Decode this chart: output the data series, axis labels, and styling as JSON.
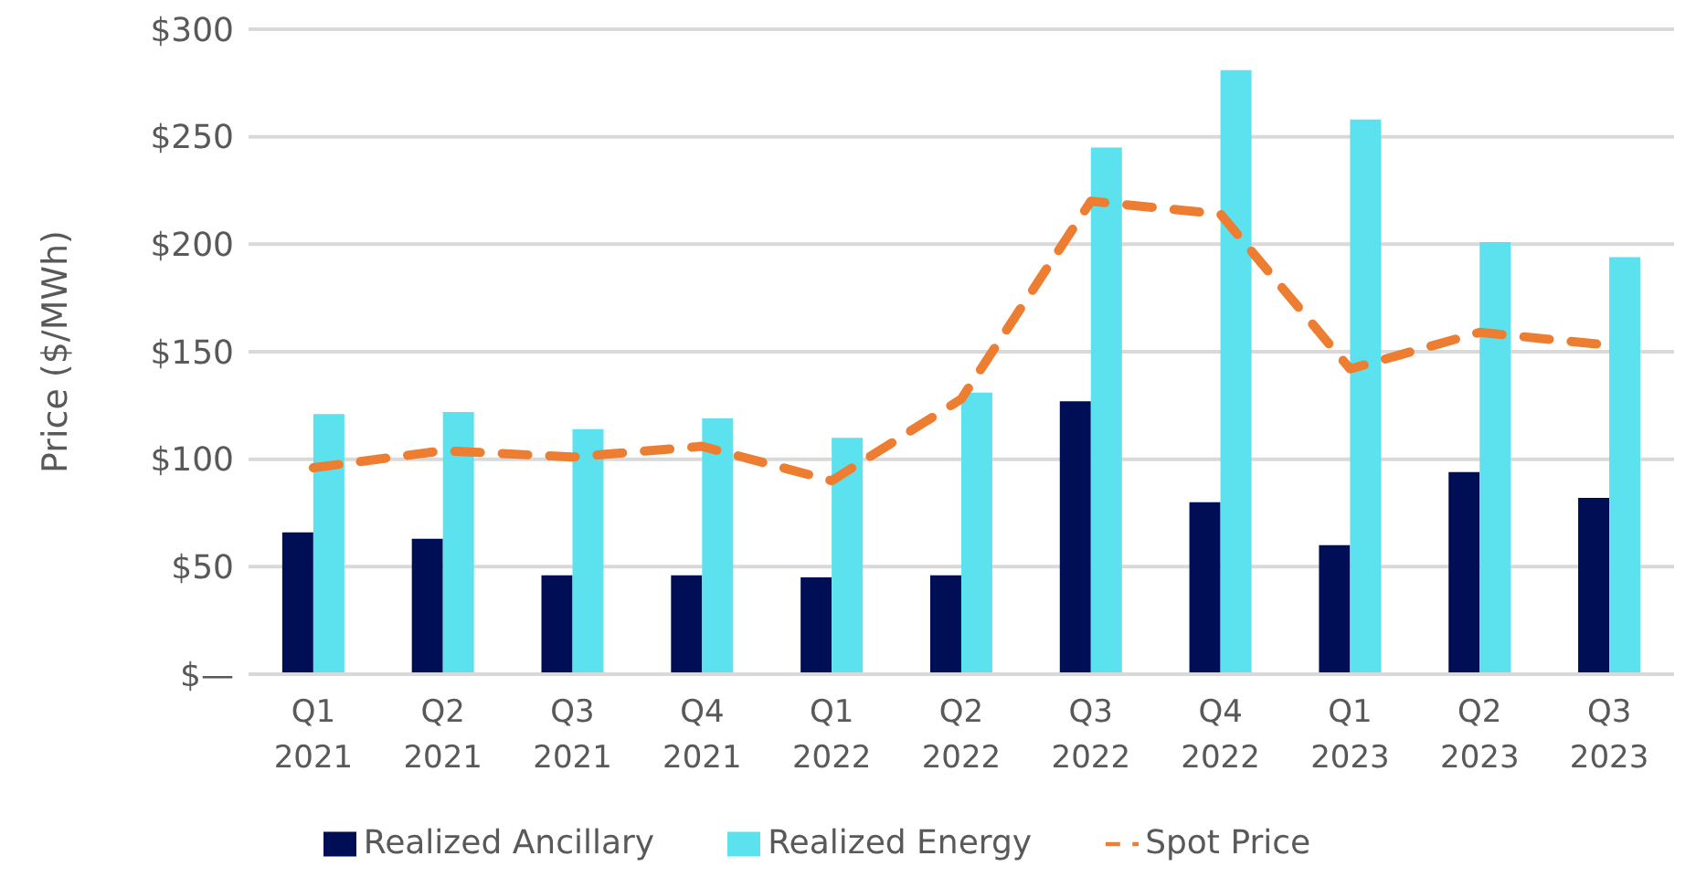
{
  "chart_data": {
    "type": "bar",
    "ylabel": "Price ($/MWh)",
    "categories": [
      "Q1\n2021",
      "Q2\n2021",
      "Q3\n2021",
      "Q4\n2021",
      "Q1\n2022",
      "Q2\n2022",
      "Q3\n2022",
      "Q4\n2022",
      "Q1\n2023",
      "Q2\n2023",
      "Q3\n2023"
    ],
    "series": [
      {
        "name": "Realized Ancillary",
        "color": "#000f55",
        "values": [
          66,
          63,
          46,
          46,
          45,
          46,
          127,
          80,
          60,
          94,
          82
        ]
      },
      {
        "name": "Realized Energy",
        "color": "#5ce1ee",
        "values": [
          121,
          122,
          114,
          119,
          110,
          131,
          245,
          281,
          258,
          201,
          194
        ]
      },
      {
        "name": "Spot Price",
        "type": "line",
        "color": "#ed7d31",
        "line_style": "dashed",
        "marker": "none",
        "values": [
          96,
          104,
          101,
          106,
          90,
          128,
          220,
          214,
          142,
          159,
          153
        ]
      }
    ],
    "ylim": [
      0,
      300
    ],
    "yticks": [
      {
        "value": 0,
        "label": "$—"
      },
      {
        "value": 50,
        "label": "$50"
      },
      {
        "value": 100,
        "label": "$100"
      },
      {
        "value": 150,
        "label": "$150"
      },
      {
        "value": 200,
        "label": "$200"
      },
      {
        "value": 250,
        "label": "$250"
      },
      {
        "value": 300,
        "label": "$300"
      }
    ],
    "grid": "y",
    "legend": "bottom"
  }
}
